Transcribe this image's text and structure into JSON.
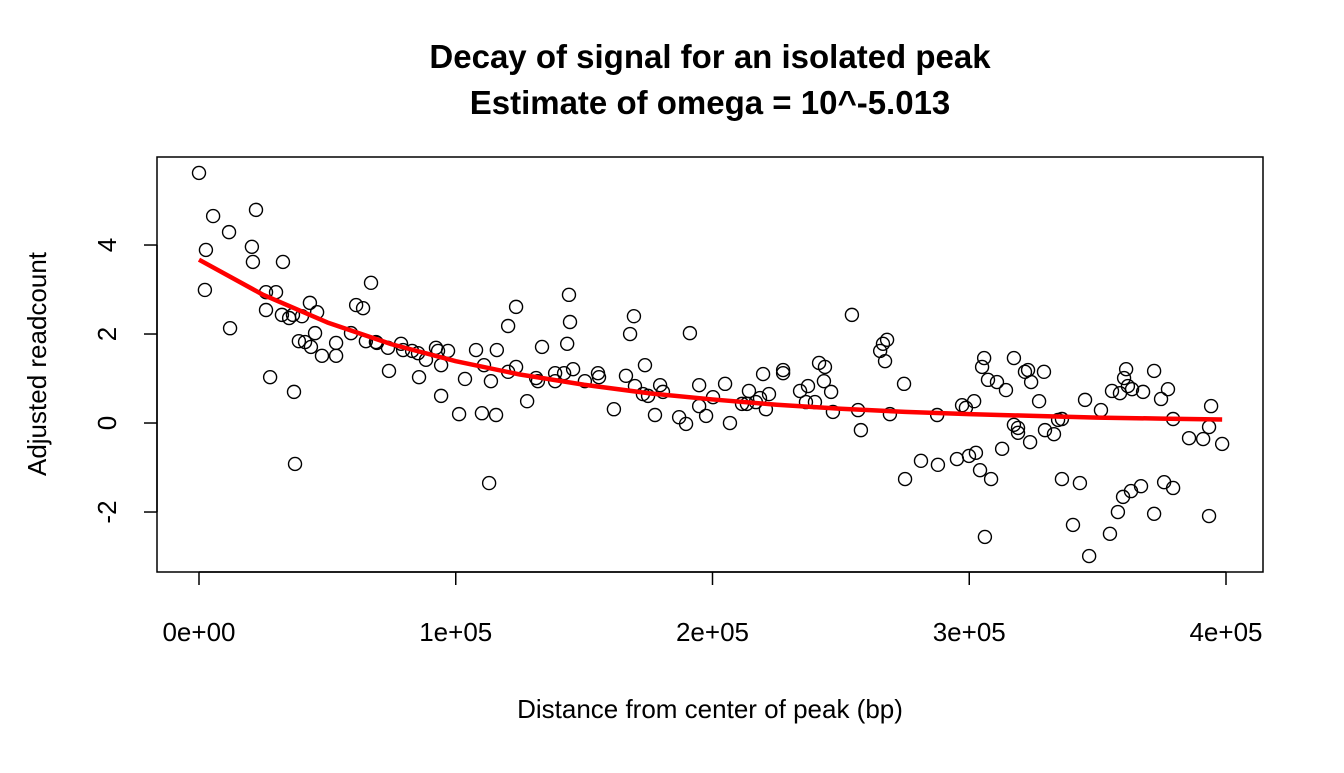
{
  "chart_data": {
    "type": "scatter",
    "title": "Decay of signal for an isolated peak",
    "subtitle": "Estimate of omega = 10^-5.013",
    "x_label": "Distance from center of peak (bp)",
    "y_label": "Adjusted readcount",
    "xlim": [
      -16358,
      414411
    ],
    "ylim": [
      -3.348,
      5.978
    ],
    "xticks": [
      {
        "value": 0,
        "label": "0e+00"
      },
      {
        "value": 100000,
        "label": "1e+05"
      },
      {
        "value": 200000,
        "label": "2e+05"
      },
      {
        "value": 300000,
        "label": "3e+05"
      },
      {
        "value": 400000,
        "label": "4e+05"
      }
    ],
    "yticks": [
      -2,
      0,
      2,
      4
    ],
    "series": [
      {
        "type": "scatter",
        "color": "#000000",
        "x": [
          0,
          5500,
          2700,
          2300,
          11700,
          12100,
          20600,
          21000,
          22200,
          26100,
          26100,
          27700,
          30000,
          32700,
          32300,
          35100,
          36600,
          37000,
          37400,
          38900,
          40100,
          41300,
          43200,
          43600,
          46000,
          45200,
          47900,
          53400,
          53400,
          59200,
          61200,
          63900,
          67000,
          65000,
          69300,
          68900,
          74000,
          73600,
          78700,
          79500,
          83000,
          85300,
          85700,
          88400,
          92300,
          93100,
          94300,
          94300,
          97000,
          101300,
          103600,
          107900,
          110200,
          111000,
          113000,
          113700,
          116000,
          115700,
          120400,
          120400,
          123500,
          123500,
          127800,
          131300,
          132000,
          133600,
          138700,
          138700,
          142200,
          143400,
          144100,
          144500,
          145700,
          150300,
          155400,
          155800,
          161600,
          166300,
          167900,
          169400,
          169800,
          172900,
          173700,
          174900,
          177600,
          179600,
          180700,
          187000,
          189700,
          191200,
          194800,
          194800,
          197500,
          200200,
          204900,
          206800,
          211500,
          214200,
          213400,
          216900,
          218500,
          219700,
          220800,
          222000,
          227500,
          227500,
          234100,
          236400,
          237200,
          239900,
          241500,
          243800,
          243400,
          246200,
          246900,
          254300,
          256700,
          257800,
          265300,
          266400,
          268000,
          267200,
          269100,
          274600,
          275000,
          281200,
          287500,
          287800,
          295200,
          297200,
          298700,
          299900,
          301900,
          302600,
          304200,
          305000,
          305800,
          306100,
          307300,
          308500,
          310800,
          312800,
          314300,
          317400,
          317400,
          319000,
          319000,
          321700,
          322900,
          324100,
          323700,
          327200,
          329100,
          329500,
          333000,
          334600,
          336100,
          336100,
          340400,
          343100,
          345100,
          346700,
          351300,
          354800,
          355600,
          357900,
          358700,
          359900,
          360300,
          361100,
          361800,
          363000,
          363400,
          366900,
          367700,
          372000,
          372000,
          374700,
          375900,
          377400,
          379400,
          379400,
          385600,
          391100,
          393400,
          393400,
          394200,
          398500
        ],
        "values": [
          5.62,
          4.65,
          3.89,
          2.99,
          4.29,
          2.13,
          3.96,
          3.62,
          4.79,
          2.94,
          2.54,
          1.03,
          2.94,
          3.62,
          2.43,
          2.36,
          2.43,
          0.7,
          -0.92,
          1.84,
          2.4,
          1.82,
          2.7,
          1.71,
          2.49,
          2.02,
          1.51,
          1.8,
          1.51,
          2.02,
          2.65,
          2.58,
          3.15,
          1.84,
          1.8,
          1.82,
          1.17,
          1.69,
          1.78,
          1.64,
          1.62,
          1.57,
          1.03,
          1.42,
          1.69,
          1.62,
          0.61,
          1.3,
          1.62,
          0.2,
          0.99,
          1.64,
          0.22,
          1.3,
          -1.35,
          0.94,
          1.64,
          0.18,
          2.18,
          1.15,
          2.61,
          1.26,
          0.49,
          1.01,
          0.94,
          1.71,
          0.94,
          1.12,
          1.12,
          1.78,
          2.88,
          2.27,
          1.21,
          0.94,
          1.12,
          1.03,
          0.31,
          1.06,
          2.0,
          2.4,
          0.83,
          0.65,
          1.3,
          0.61,
          0.18,
          0.85,
          0.7,
          0.13,
          -0.02,
          2.02,
          0.85,
          0.38,
          0.16,
          0.58,
          0.88,
          0.0,
          0.43,
          0.72,
          0.43,
          0.47,
          0.56,
          1.1,
          0.31,
          0.65,
          1.19,
          1.12,
          0.72,
          0.47,
          0.83,
          0.47,
          1.35,
          1.26,
          0.94,
          0.7,
          0.25,
          2.43,
          0.29,
          -0.16,
          1.62,
          1.78,
          1.87,
          1.39,
          0.2,
          0.88,
          -1.26,
          -0.85,
          0.18,
          -0.94,
          -0.81,
          0.4,
          0.34,
          -0.74,
          0.49,
          -0.67,
          -1.06,
          1.26,
          1.46,
          -2.56,
          0.97,
          -1.26,
          0.92,
          -0.58,
          0.74,
          1.46,
          -0.04,
          -0.11,
          -0.22,
          1.15,
          1.19,
          0.92,
          -0.43,
          0.49,
          1.15,
          -0.16,
          -0.25,
          0.07,
          0.09,
          -1.26,
          -2.29,
          -1.35,
          0.52,
          -2.99,
          0.29,
          -2.49,
          0.72,
          -2.0,
          0.67,
          -1.66,
          1.01,
          1.21,
          0.83,
          -1.53,
          0.76,
          -1.42,
          0.7,
          1.17,
          -2.04,
          0.54,
          -1.33,
          0.76,
          -1.46,
          0.09,
          -0.34,
          -0.36,
          -0.09,
          -2.09,
          0.38,
          -0.47
        ]
      },
      {
        "type": "line",
        "color": "#ff0000",
        "x": [
          0,
          25000,
          50000,
          75000,
          100000,
          125000,
          150000,
          175000,
          200000,
          225000,
          250000,
          275000,
          300000,
          325000,
          350000,
          375000,
          398500
        ],
        "values": [
          3.67,
          2.88,
          2.26,
          1.77,
          1.39,
          1.09,
          0.86,
          0.67,
          0.53,
          0.41,
          0.32,
          0.25,
          0.2,
          0.16,
          0.12,
          0.1,
          0.08
        ]
      }
    ]
  }
}
